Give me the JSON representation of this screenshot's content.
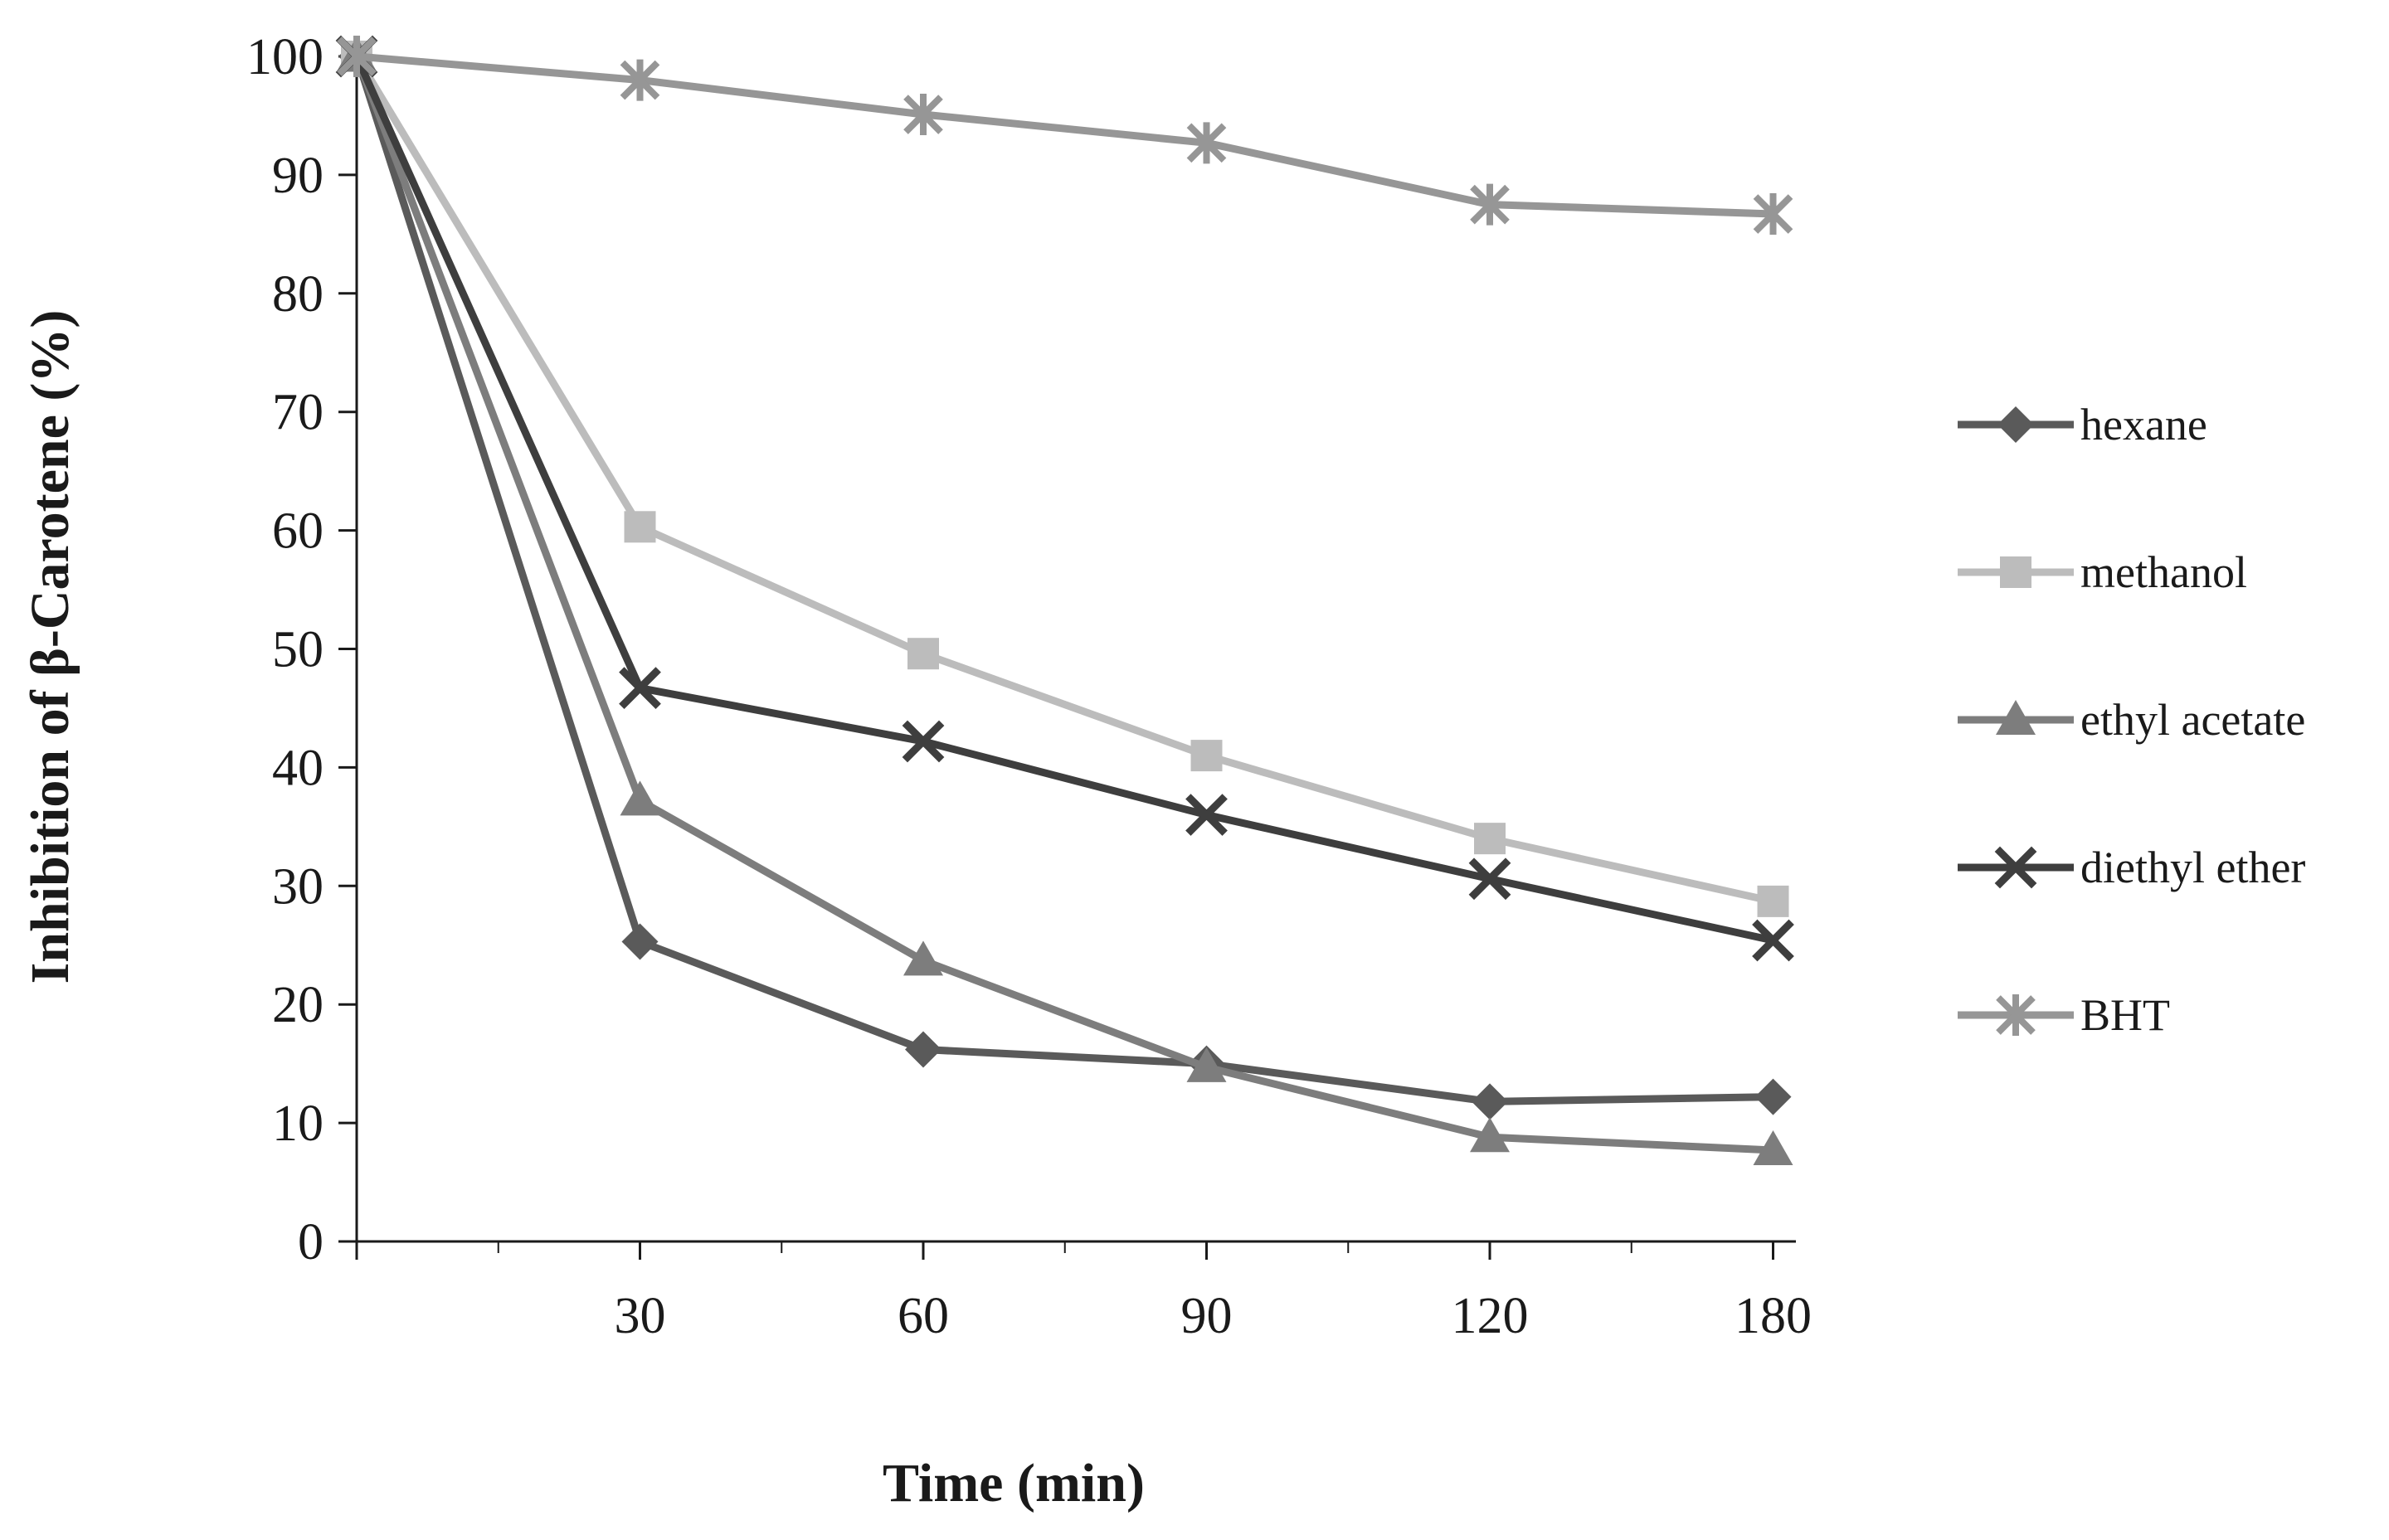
{
  "chart_data": {
    "type": "line",
    "title": "",
    "xlabel": "Time (min)",
    "ylabel": "Inhibition  of β-Carotene (%)",
    "x": [
      0,
      30,
      60,
      90,
      120,
      180
    ],
    "x_tick_labels": [
      "",
      "30",
      "60",
      "90",
      "120",
      "180"
    ],
    "y_tick_labels": [
      "0",
      "10",
      "20",
      "30",
      "40",
      "50",
      "60",
      "70",
      "80",
      "90",
      "100"
    ],
    "ylim": [
      0,
      100
    ],
    "y_ticks": [
      0,
      10,
      20,
      30,
      40,
      50,
      60,
      70,
      80,
      90,
      100
    ],
    "grid": false,
    "legend_position": "right",
    "series": [
      {
        "name": "hexane",
        "marker": "diamond",
        "color": "#5a5a5a",
        "values": [
          100,
          25.3,
          16.2,
          15.0,
          11.8,
          12.2
        ]
      },
      {
        "name": "methanol",
        "marker": "square",
        "color": "#bcbcbc",
        "values": [
          100,
          60.3,
          49.6,
          41.0,
          34.0,
          28.7
        ]
      },
      {
        "name": "ethyl acetate",
        "marker": "triangle",
        "color": "#7d7d7d",
        "values": [
          100,
          37.2,
          23.7,
          14.7,
          8.8,
          7.7
        ]
      },
      {
        "name": "diethyl ether",
        "marker": "x",
        "color": "#3e3e3e",
        "values": [
          100,
          46.7,
          42.2,
          36.0,
          30.6,
          25.4
        ]
      },
      {
        "name": "BHT",
        "marker": "star",
        "color": "#969696",
        "values": [
          100,
          98.0,
          95.1,
          92.7,
          87.5,
          86.7
        ]
      }
    ]
  }
}
